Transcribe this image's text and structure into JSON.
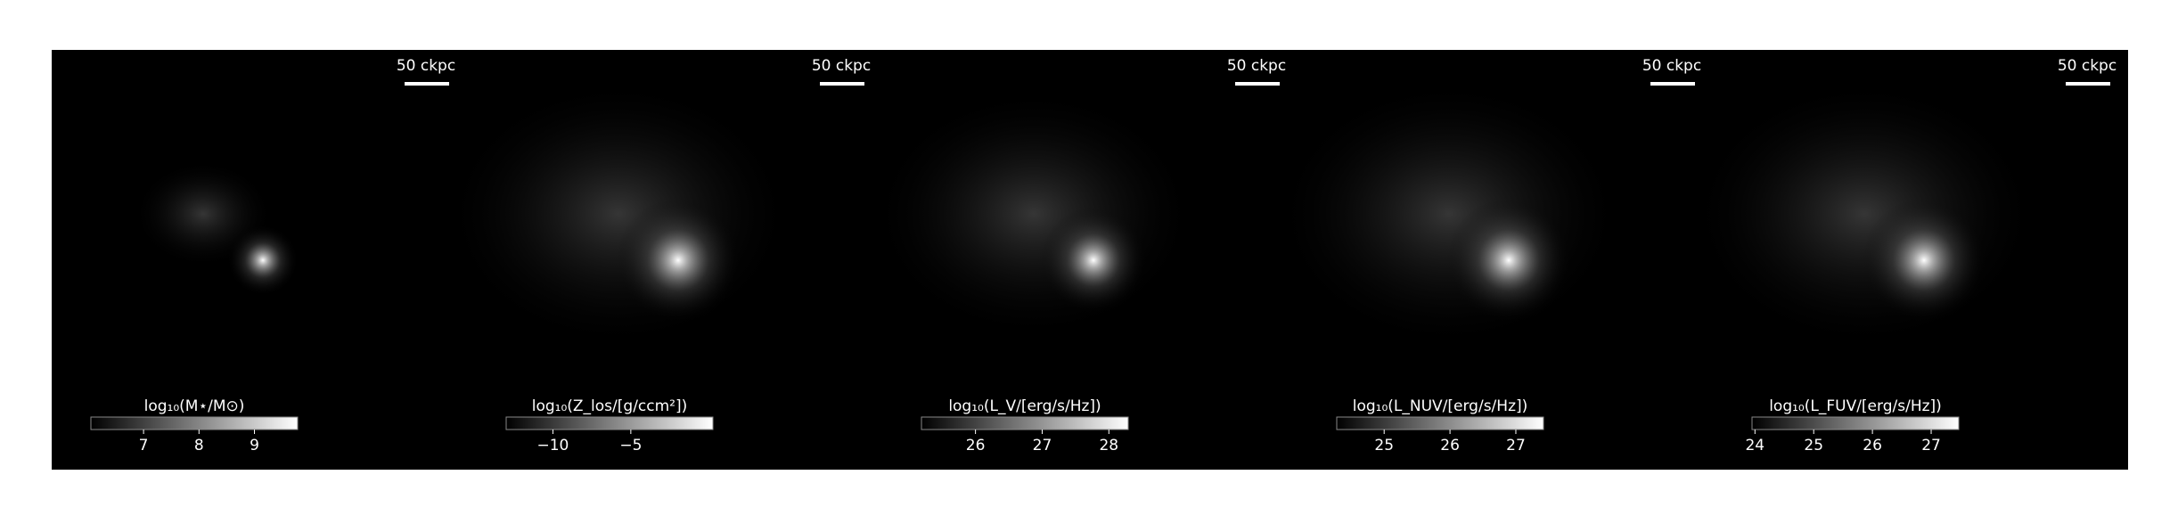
{
  "chart_data": [
    {
      "type": "colorbar_image",
      "scale_bar": "50 ckpc",
      "colorbar_label": "log₁₀(M⋆/M⊙)",
      "colorbar_lim": [
        6.05,
        9.78
      ],
      "colorbar_ticks": [
        7,
        8,
        9
      ]
    },
    {
      "type": "colorbar_image",
      "scale_bar": "50 ckpc",
      "colorbar_label": "log₁₀(Z_los/[g/ccm²])",
      "colorbar_lim": [
        -13.0,
        0.27
      ],
      "colorbar_ticks": [
        {
          "value": -10,
          "label": "−10"
        },
        {
          "value": -5,
          "label": "−5"
        }
      ]
    },
    {
      "type": "colorbar_image",
      "scale_bar": "50 ckpc",
      "colorbar_label": "log₁₀(L_V/[erg/s/Hz])",
      "colorbar_lim": [
        25.19,
        28.29
      ],
      "colorbar_ticks": [
        26,
        27,
        28
      ]
    },
    {
      "type": "colorbar_image",
      "scale_bar": "50 ckpc",
      "colorbar_label": "log₁₀(L_NUV/[erg/s/Hz])",
      "colorbar_lim": [
        24.28,
        27.42
      ],
      "colorbar_ticks": [
        25,
        26,
        27
      ]
    },
    {
      "type": "colorbar_image",
      "scale_bar": "50 ckpc",
      "colorbar_label": "log₁₀(L_FUV/[erg/s/Hz])",
      "colorbar_lim": [
        23.95,
        27.47
      ],
      "colorbar_ticks": [
        24,
        25,
        26,
        27
      ]
    }
  ]
}
